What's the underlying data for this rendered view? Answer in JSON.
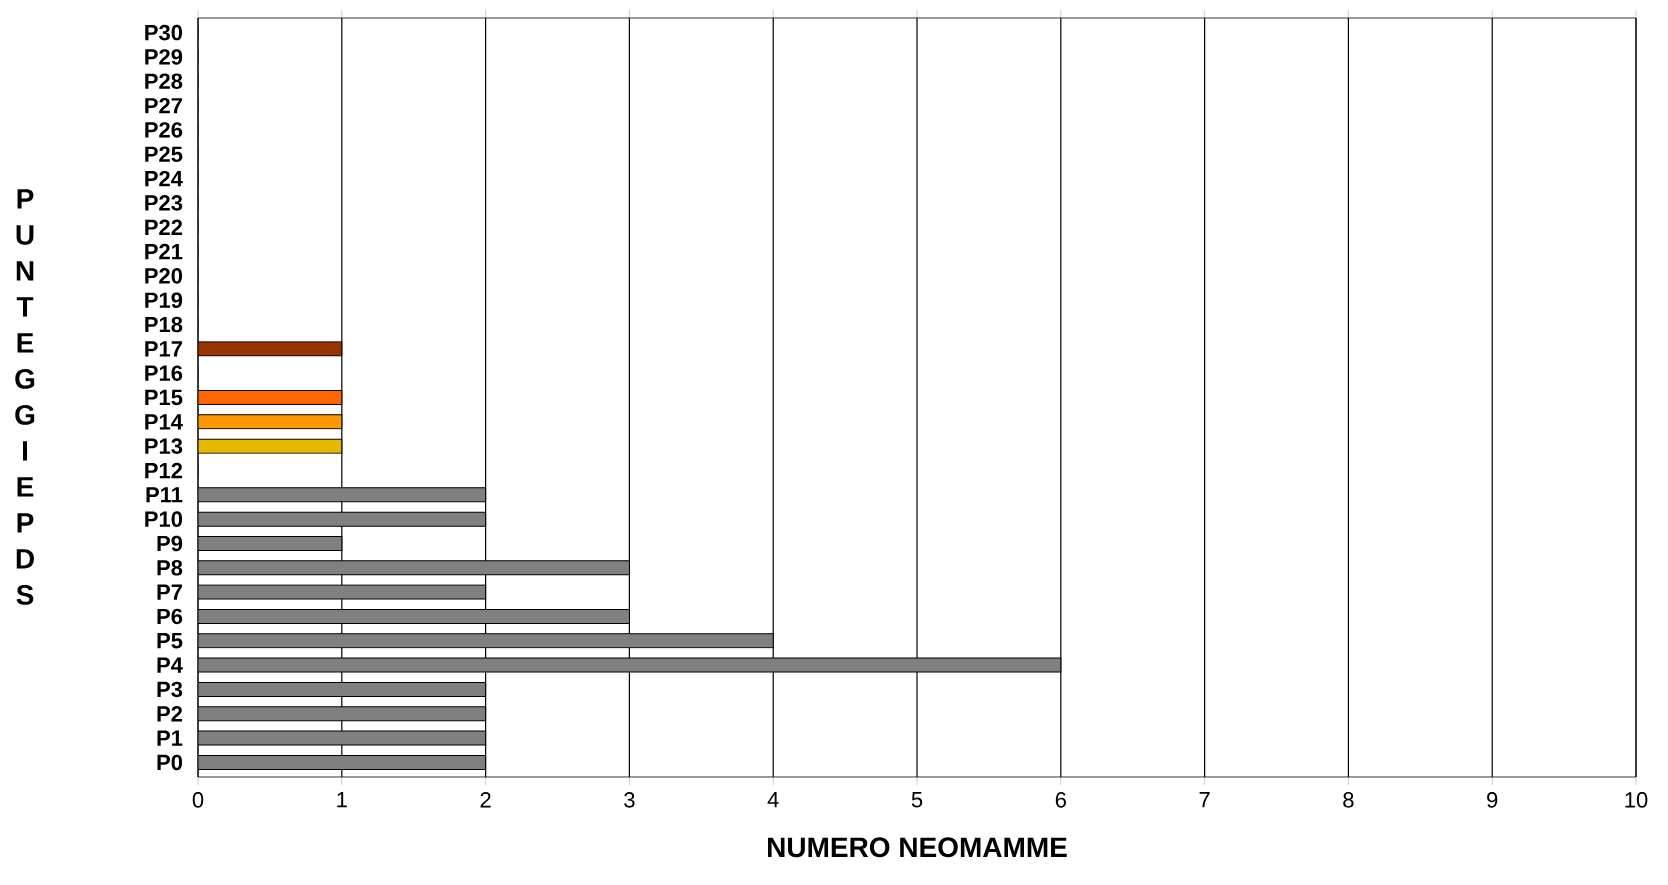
{
  "chart_data": {
    "type": "bar",
    "orientation": "horizontal",
    "xlabel": "NUMERO NEOMAMME",
    "ylabel": "PUNTEGGI EPDS",
    "categories": [
      "P30",
      "P29",
      "P28",
      "P27",
      "P26",
      "P25",
      "P24",
      "P23",
      "P22",
      "P21",
      "P20",
      "P19",
      "P18",
      "P17",
      "P16",
      "P15",
      "P14",
      "P13",
      "P12",
      "P11",
      "P10",
      "P9",
      "P8",
      "P7",
      "P6",
      "P5",
      "P4",
      "P3",
      "P2",
      "P1",
      "P0"
    ],
    "values": [
      0,
      0,
      0,
      0,
      0,
      0,
      0,
      0,
      0,
      0,
      0,
      0,
      0,
      1,
      0,
      1,
      1,
      1,
      0,
      2,
      2,
      1,
      3,
      2,
      3,
      4,
      6,
      2,
      2,
      2,
      2
    ],
    "colors": [
      "#808080",
      "#808080",
      "#808080",
      "#808080",
      "#808080",
      "#808080",
      "#808080",
      "#808080",
      "#808080",
      "#808080",
      "#808080",
      "#808080",
      "#808080",
      "#993300",
      "#808080",
      "#ff6600",
      "#ff9900",
      "#e6b800",
      "#808080",
      "#808080",
      "#808080",
      "#808080",
      "#808080",
      "#808080",
      "#808080",
      "#808080",
      "#808080",
      "#808080",
      "#808080",
      "#808080",
      "#808080"
    ],
    "xlim": [
      0,
      10
    ],
    "xticks": [
      0,
      1,
      2,
      3,
      4,
      5,
      6,
      7,
      8,
      9,
      10
    ],
    "grid": "x"
  }
}
